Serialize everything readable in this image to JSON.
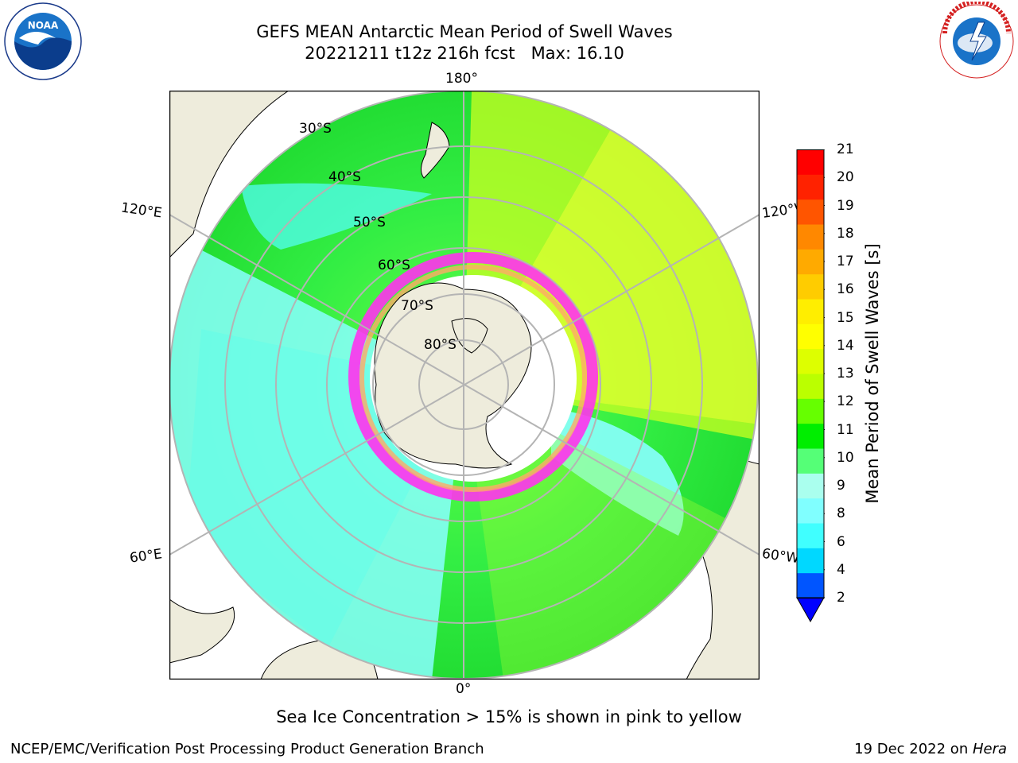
{
  "header": {
    "title_line1": "GEFS MEAN Antarctic Mean Period of Swell Waves",
    "title_line2": "20221211 t12z 216h fcst   Max: 16.10"
  },
  "logos": {
    "noaa": {
      "icon": "noaa-logo-icon",
      "text": "NOAA",
      "ring_text": "NATIONAL OCEANIC AND ATMOSPHERIC ADMINISTRATION · U.S. DEPARTMENT OF COMMERCE"
    },
    "nws": {
      "icon": "nws-logo-icon",
      "ring_text": "NATIONAL WEATHER SERVICE"
    }
  },
  "map": {
    "projection": "south polar stereographic",
    "longitude_labels": {
      "top": "180°",
      "bottom": "0°",
      "upper_left": "120°E",
      "lower_left": "60°E",
      "upper_right": "120°W",
      "lower_right": "60°W"
    },
    "latitude_labels": [
      "30°S",
      "40°S",
      "50°S",
      "60°S",
      "70°S",
      "80°S"
    ],
    "colors": {
      "land": "#eeecdc",
      "ocean_frame": "#ffffff",
      "graticule": "#b4b4b4"
    }
  },
  "colorbar": {
    "label": "Mean Period of Swell Waves [s]",
    "ticks": [
      "21",
      "20",
      "19",
      "18",
      "17",
      "16",
      "15",
      "14",
      "13",
      "12",
      "11",
      "10",
      "9",
      "8",
      "6",
      "4",
      "2"
    ],
    "colors_bottom_to_top": [
      "#0055ff",
      "#00d8ff",
      "#40ffff",
      "#80ffff",
      "#aaffee",
      "#55ff77",
      "#00ee00",
      "#66ff00",
      "#bbff00",
      "#ddff00",
      "#ffff00",
      "#ffee00",
      "#ffcc00",
      "#ffaa00",
      "#ff8800",
      "#ff5500",
      "#ff2200",
      "#ff0000"
    ],
    "extend_color": "#0000ff"
  },
  "caption": "Sea Ice Concentration > 15% is shown in pink to yellow",
  "footer": {
    "left": "NCEP/EMC/Verification Post Processing Product Generation Branch",
    "right_date": "19 Dec 2022 on ",
    "right_host": "Hera"
  }
}
